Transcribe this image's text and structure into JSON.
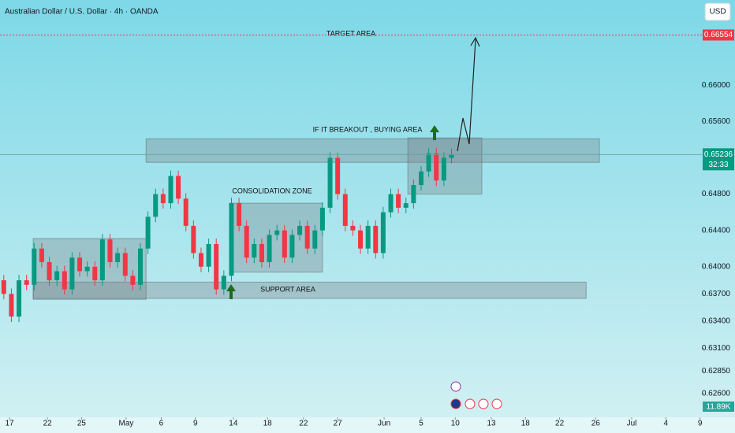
{
  "chart_data": {
    "type": "candlestick",
    "title": "Australian Dollar / U.S. Dollar · 4h · OANDA",
    "currency": "USD",
    "x": [
      2,
      6,
      10,
      14,
      18,
      22,
      26,
      30,
      34,
      38,
      42,
      46,
      50,
      54,
      58,
      62,
      66,
      70,
      74,
      78,
      82,
      86,
      90,
      94,
      98,
      102,
      106,
      110,
      114,
      118,
      122,
      126,
      130,
      134,
      138,
      142,
      146,
      150,
      154,
      158,
      162,
      166,
      170,
      174,
      178,
      182,
      186,
      190,
      194,
      198,
      202,
      206,
      210,
      214,
      218,
      222,
      226,
      230,
      234,
      238
    ],
    "open": [
      0.6385,
      0.637,
      0.6345,
      0.6385,
      0.638,
      0.642,
      0.6405,
      0.6385,
      0.6395,
      0.6375,
      0.641,
      0.6395,
      0.64,
      0.6385,
      0.643,
      0.6405,
      0.6415,
      0.639,
      0.638,
      0.642,
      0.6455,
      0.648,
      0.647,
      0.65,
      0.6475,
      0.6445,
      0.6415,
      0.64,
      0.6425,
      0.6375,
      0.639,
      0.647,
      0.6445,
      0.641,
      0.6425,
      0.6405,
      0.6435,
      0.644,
      0.641,
      0.6435,
      0.6445,
      0.642,
      0.644,
      0.6465,
      0.652,
      0.648,
      0.6445,
      0.644,
      0.642,
      0.6445,
      0.6415,
      0.646,
      0.648,
      0.6465,
      0.647,
      0.649,
      0.6505,
      0.6525,
      0.6495,
      0.652
    ],
    "high": [
      0.6391,
      0.6376,
      0.6391,
      0.6391,
      0.6426,
      0.6426,
      0.6411,
      0.6401,
      0.6401,
      0.6416,
      0.6416,
      0.6406,
      0.6406,
      0.6436,
      0.6436,
      0.6421,
      0.6421,
      0.6396,
      0.6426,
      0.6461,
      0.6486,
      0.6486,
      0.6506,
      0.6506,
      0.6481,
      0.6451,
      0.6421,
      0.6431,
      0.6431,
      0.6396,
      0.6476,
      0.6476,
      0.6451,
      0.6431,
      0.6431,
      0.6441,
      0.6446,
      0.6446,
      0.6441,
      0.6451,
      0.6451,
      0.6446,
      0.6471,
      0.6526,
      0.6526,
      0.6486,
      0.6451,
      0.6446,
      0.6451,
      0.6451,
      0.6466,
      0.6486,
      0.6486,
      0.6476,
      0.6496,
      0.6511,
      0.6531,
      0.6531,
      0.6526,
      0.653
    ],
    "low": [
      0.6364,
      0.6339,
      0.6339,
      0.6374,
      0.6374,
      0.6399,
      0.6379,
      0.6379,
      0.6369,
      0.6369,
      0.6389,
      0.6389,
      0.6379,
      0.6379,
      0.6399,
      0.6399,
      0.6384,
      0.6374,
      0.6374,
      0.6414,
      0.6449,
      0.6464,
      0.6464,
      0.6469,
      0.6439,
      0.6409,
      0.6394,
      0.6394,
      0.6369,
      0.6369,
      0.6384,
      0.6439,
      0.6404,
      0.6404,
      0.6399,
      0.6399,
      0.6429,
      0.6404,
      0.6404,
      0.6429,
      0.6414,
      0.6414,
      0.6434,
      0.6459,
      0.6474,
      0.6439,
      0.6434,
      0.6414,
      0.6414,
      0.6409,
      0.6409,
      0.6454,
      0.6459,
      0.6459,
      0.6464,
      0.6484,
      0.6499,
      0.6489,
      0.6489,
      0.6514
    ],
    "close": [
      0.637,
      0.6345,
      0.6385,
      0.638,
      0.642,
      0.6405,
      0.6385,
      0.6395,
      0.6375,
      0.641,
      0.6395,
      0.64,
      0.6385,
      0.643,
      0.6405,
      0.6415,
      0.639,
      0.638,
      0.642,
      0.6455,
      0.648,
      0.647,
      0.65,
      0.6475,
      0.6445,
      0.6415,
      0.64,
      0.6425,
      0.6375,
      0.639,
      0.647,
      0.6445,
      0.641,
      0.6425,
      0.6405,
      0.6435,
      0.644,
      0.641,
      0.6435,
      0.6445,
      0.642,
      0.644,
      0.6465,
      0.652,
      0.648,
      0.6445,
      0.644,
      0.642,
      0.6445,
      0.6415,
      0.646,
      0.648,
      0.6465,
      0.647,
      0.649,
      0.6505,
      0.6525,
      0.6495,
      0.652,
      0.6524
    ],
    "up_color": "#089981",
    "down_color": "#f23645",
    "xlim": [
      0,
      370
    ],
    "xticks": [
      {
        "value": 5,
        "label": "17"
      },
      {
        "value": 25,
        "label": "22"
      },
      {
        "value": 43,
        "label": "25"
      },
      {
        "value": 66.5,
        "label": "May"
      },
      {
        "value": 85,
        "label": "6"
      },
      {
        "value": 103,
        "label": "9"
      },
      {
        "value": 123,
        "label": "14"
      },
      {
        "value": 141,
        "label": "18"
      },
      {
        "value": 160,
        "label": "22"
      },
      {
        "value": 178,
        "label": "27"
      },
      {
        "value": 202.5,
        "label": "Jun"
      },
      {
        "value": 222,
        "label": "5"
      },
      {
        "value": 240,
        "label": "10"
      },
      {
        "value": 259,
        "label": "13"
      },
      {
        "value": 277,
        "label": "18"
      },
      {
        "value": 295,
        "label": "22"
      },
      {
        "value": 314,
        "label": "26"
      },
      {
        "value": 333,
        "label": "Jul"
      },
      {
        "value": 351,
        "label": "4"
      },
      {
        "value": 369,
        "label": "9"
      }
    ],
    "ylim": [
      0.6234,
      0.6694
    ],
    "yticks": [
      {
        "value": 0.626,
        "label": "0.62600"
      },
      {
        "value": 0.6285,
        "label": "0.62850"
      },
      {
        "value": 0.631,
        "label": "0.63100"
      },
      {
        "value": 0.634,
        "label": "0.63400"
      },
      {
        "value": 0.637,
        "label": "0.63700"
      },
      {
        "value": 0.64,
        "label": "0.64000"
      },
      {
        "value": 0.644,
        "label": "0.64400"
      },
      {
        "value": 0.648,
        "label": "0.64800"
      },
      {
        "value": 0.656,
        "label": "0.65600"
      },
      {
        "value": 0.66,
        "label": "0.66000"
      }
    ],
    "target_price": 0.66554,
    "last_price": 0.65236,
    "countdown": "32:33",
    "volume_label": "11.89K",
    "zones": [
      {
        "xlim": [
          77,
          316
        ],
        "ylim": [
          0.6515,
          0.6541
        ]
      },
      {
        "xlim": [
          17.5,
          309
        ],
        "ylim": [
          0.6365,
          0.6383
        ]
      },
      {
        "xlim": [
          121,
          170
        ],
        "ylim": [
          0.6394,
          0.647
        ]
      },
      {
        "xlim": [
          17.5,
          77
        ],
        "ylim": [
          0.6364,
          0.6431
        ]
      },
      {
        "xlim": [
          215,
          254
        ],
        "ylim": [
          0.648,
          0.6542
        ]
      }
    ],
    "annotations": {
      "target": "TARGET AREA",
      "breakout": "IF IT BREAKOUT , BUYING AREA",
      "consolidation": "CONSOLIDATION ZONE",
      "support": "SUPPORT AREA"
    }
  }
}
